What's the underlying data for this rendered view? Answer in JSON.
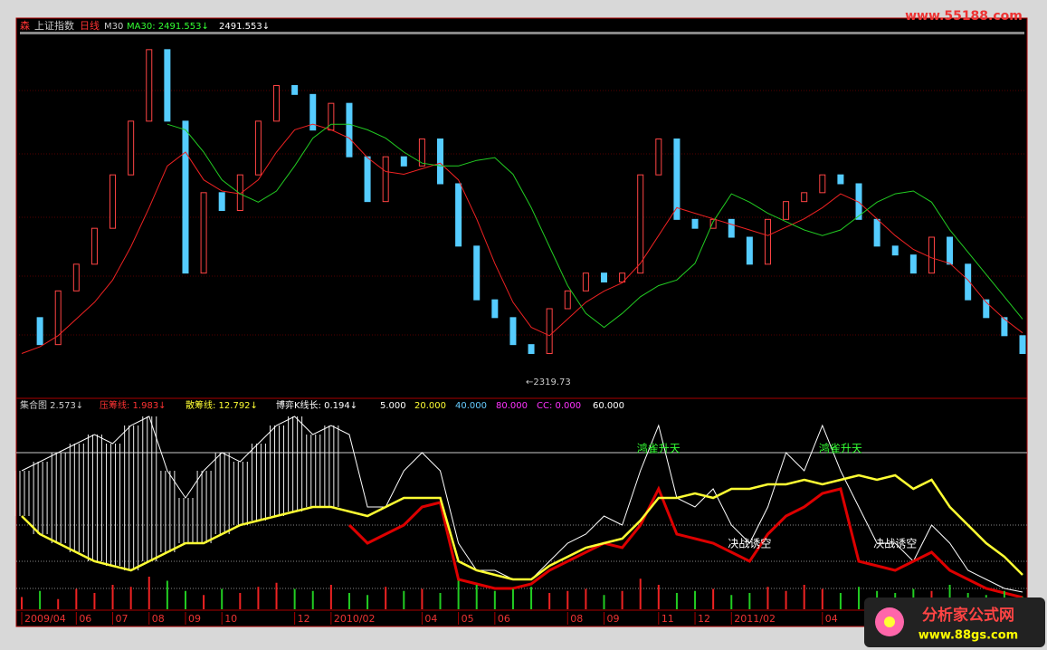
{
  "header": {
    "icon": "森",
    "index_name": "上证指数",
    "period": "日线",
    "ma_label": "M30",
    "ma_value": "MA30: 2491.553↓",
    "ma_value2": "2491.553↓"
  },
  "indicator_legend": {
    "name": "集合图 2.573↓",
    "pressure": "压筹线: 1.983↓",
    "scatter": "散筹线: 12.792↓",
    "game": "博弈K线长: 0.194↓",
    "p1": "5.000",
    "p2": "20.000",
    "p3": "40.000",
    "p4": "80.000",
    "cc": "CC: 0.000",
    "p5": "60.000"
  },
  "watermarks": {
    "top": "www.55188.com",
    "brand": "分析家公式网",
    "bottom": "www.88gs.com"
  },
  "price_panel": {
    "ylim": [
      2280,
      3500
    ],
    "low_label": "←2319.73",
    "close": [
      2505,
      2408,
      2601,
      2697,
      2826,
      3018,
      3211,
      3468,
      3211,
      2665,
      2954,
      2890,
      3018,
      3211,
      3339,
      3307,
      3179,
      3275,
      3083,
      2922,
      3083,
      3050,
      3147,
      2986,
      2762,
      2569,
      2505,
      2408,
      2376,
      2537,
      2601,
      2665,
      2633,
      2665,
      3018,
      3147,
      2858,
      2826,
      2858,
      2794,
      2697,
      2858,
      2922,
      2954,
      3018,
      2986,
      2858,
      2762,
      2730,
      2665,
      2794,
      2697,
      2569,
      2505,
      2440,
      2376
    ],
    "ma_red": [
      2376,
      2400,
      2440,
      2500,
      2560,
      2640,
      2760,
      2900,
      3050,
      3100,
      3000,
      2960,
      2950,
      3000,
      3100,
      3180,
      3200,
      3180,
      3150,
      3080,
      3030,
      3020,
      3040,
      3060,
      3000,
      2860,
      2700,
      2560,
      2470,
      2440,
      2500,
      2560,
      2600,
      2630,
      2700,
      2800,
      2900,
      2880,
      2860,
      2840,
      2820,
      2800,
      2830,
      2860,
      2900,
      2950,
      2920,
      2860,
      2800,
      2750,
      2720,
      2700,
      2640,
      2560,
      2500,
      2450
    ],
    "ma_green": [
      null,
      null,
      null,
      null,
      null,
      null,
      null,
      null,
      3200,
      3180,
      3100,
      3000,
      2950,
      2920,
      2960,
      3050,
      3150,
      3200,
      3200,
      3180,
      3150,
      3100,
      3060,
      3050,
      3050,
      3070,
      3080,
      3020,
      2900,
      2760,
      2620,
      2520,
      2470,
      2520,
      2580,
      2620,
      2640,
      2700,
      2850,
      2950,
      2920,
      2880,
      2850,
      2820,
      2800,
      2820,
      2870,
      2920,
      2950,
      2960,
      2920,
      2820,
      2740,
      2660,
      2580,
      2500
    ],
    "volume": [
      30,
      45,
      25,
      50,
      40,
      60,
      55,
      80,
      70,
      45,
      35,
      50,
      40,
      55,
      65,
      50,
      45,
      60,
      40,
      35,
      55,
      45,
      50,
      40,
      70,
      60,
      45,
      50,
      55,
      40,
      45,
      50,
      35,
      45,
      75,
      60,
      40,
      45,
      50,
      35,
      40,
      55,
      45,
      60,
      50,
      40,
      55,
      45,
      40,
      50,
      45,
      60,
      40,
      35,
      45,
      30
    ]
  },
  "indicator_panel": {
    "ylim": [
      0,
      100
    ],
    "levels": [
      80,
      40,
      20,
      5
    ],
    "white": [
      70,
      75,
      80,
      85,
      90,
      85,
      95,
      100,
      70,
      55,
      70,
      80,
      75,
      85,
      95,
      100,
      90,
      95,
      90,
      50,
      50,
      70,
      80,
      70,
      30,
      15,
      15,
      10,
      10,
      20,
      30,
      35,
      45,
      40,
      70,
      95,
      55,
      50,
      60,
      40,
      30,
      50,
      80,
      70,
      95,
      70,
      50,
      30,
      30,
      20,
      40,
      30,
      15,
      10,
      5,
      3
    ],
    "yellow": [
      45,
      35,
      30,
      25,
      20,
      17.5,
      15,
      20,
      25,
      30,
      30,
      35,
      40,
      42.5,
      45,
      47.5,
      50,
      50,
      47.5,
      45,
      50,
      55,
      55,
      55,
      20,
      15,
      12.5,
      10,
      10,
      17.5,
      22.5,
      27.5,
      30,
      32.5,
      42.5,
      55,
      55,
      57.5,
      55,
      60,
      60,
      62.5,
      62.5,
      65,
      62.5,
      65,
      67.5,
      65,
      67.5,
      60,
      65,
      50,
      40,
      30,
      22.5,
      12.5
    ],
    "red": [
      null,
      null,
      null,
      null,
      null,
      null,
      null,
      null,
      null,
      null,
      null,
      null,
      null,
      null,
      null,
      null,
      null,
      null,
      40,
      30,
      35,
      40,
      50,
      52.5,
      10,
      7.5,
      5,
      5,
      7.5,
      15,
      20,
      25,
      30,
      27.5,
      40,
      60,
      35,
      32.5,
      30,
      25,
      20,
      35,
      45,
      50,
      57.5,
      60,
      20,
      17.5,
      15,
      20,
      25,
      15,
      10,
      5,
      2.5,
      0
    ],
    "annotations": [
      {
        "text": "鸿雀升天",
        "index": 35
      },
      {
        "text": "鸿雀升天",
        "index": 45
      },
      {
        "text": "决战诱空",
        "index": 40
      },
      {
        "text": "决战诱空",
        "index": 48
      }
    ]
  },
  "x_axis": {
    "labels": [
      "2009/04",
      "06",
      "07",
      "08",
      "09",
      "10",
      "12",
      "2010/02",
      "04",
      "05",
      "06",
      "08",
      "09",
      "11",
      "12",
      "2011/02",
      "04"
    ],
    "positions": [
      0,
      3,
      5,
      7,
      9,
      11,
      15,
      17,
      22,
      24,
      26,
      30,
      32,
      35,
      37,
      39,
      44
    ]
  }
}
